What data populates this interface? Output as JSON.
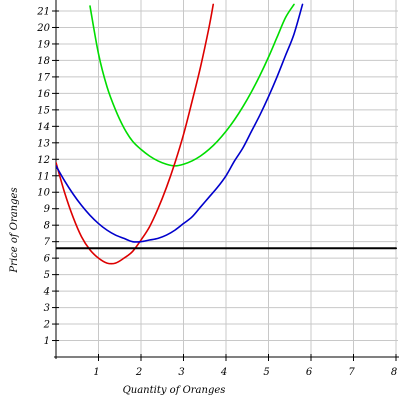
{
  "chart_data": {
    "type": "line",
    "title": "",
    "xlabel": "Quantity of Oranges",
    "ylabel": "Price of Oranges",
    "xlim": [
      0,
      8
    ],
    "ylim": [
      0,
      21
    ],
    "x_ticks": [
      "1",
      "2",
      "3",
      "4",
      "5",
      "6",
      "7",
      "8"
    ],
    "y_ticks": [
      "1",
      "2",
      "3",
      "4",
      "5",
      "6",
      "7",
      "8",
      "9",
      "10",
      "11",
      "12",
      "13",
      "14",
      "15",
      "16",
      "17",
      "18",
      "19",
      "20",
      "21"
    ],
    "grid": true,
    "legend": "none",
    "series": [
      {
        "color": "#00dd00",
        "x": [
          0.8,
          1.0,
          1.2,
          1.4,
          1.6,
          1.8,
          2.0,
          2.2,
          2.4,
          2.6,
          2.8,
          3.0,
          3.2,
          3.4,
          3.6,
          3.8,
          4.0,
          4.2,
          4.4,
          4.6,
          4.8,
          5.0,
          5.2,
          5.4,
          5.6
        ],
        "y": [
          21.3,
          18.4,
          16.4,
          15.0,
          13.9,
          13.1,
          12.6,
          12.2,
          11.9,
          11.7,
          11.6,
          11.7,
          11.9,
          12.2,
          12.6,
          13.1,
          13.7,
          14.4,
          15.2,
          16.1,
          17.1,
          18.2,
          19.4,
          20.6,
          21.4
        ]
      },
      {
        "color": "#dd0000",
        "x": [
          0.0,
          0.2,
          0.4,
          0.6,
          0.8,
          1.0,
          1.2,
          1.4,
          1.6,
          1.8,
          2.0,
          2.2,
          2.4,
          2.6,
          2.8,
          3.0,
          3.2,
          3.4,
          3.6,
          3.7
        ],
        "y": [
          11.8,
          10.0,
          8.5,
          7.3,
          6.5,
          6.0,
          5.7,
          5.7,
          6.0,
          6.4,
          7.1,
          7.9,
          9.0,
          10.3,
          11.8,
          13.5,
          15.5,
          17.6,
          20.0,
          21.4
        ]
      },
      {
        "color": "#0000cc",
        "x": [
          0.0,
          0.2,
          0.4,
          0.6,
          0.8,
          1.0,
          1.2,
          1.4,
          1.6,
          1.8,
          2.0,
          2.2,
          2.4,
          2.6,
          2.8,
          3.0,
          3.2,
          3.4,
          3.6,
          3.8,
          4.0,
          4.2,
          4.4,
          4.6,
          4.8,
          5.0,
          5.2,
          5.4,
          5.6,
          5.8
        ],
        "y": [
          11.6,
          10.7,
          9.9,
          9.2,
          8.6,
          8.1,
          7.7,
          7.4,
          7.2,
          7.0,
          7.0,
          7.1,
          7.2,
          7.4,
          7.7,
          8.1,
          8.5,
          9.1,
          9.7,
          10.3,
          11.0,
          11.9,
          12.7,
          13.7,
          14.7,
          15.8,
          17.0,
          18.3,
          19.6,
          21.4
        ]
      },
      {
        "color": "#000000",
        "x": [
          0,
          8
        ],
        "y": [
          6.6,
          6.6
        ]
      }
    ]
  }
}
